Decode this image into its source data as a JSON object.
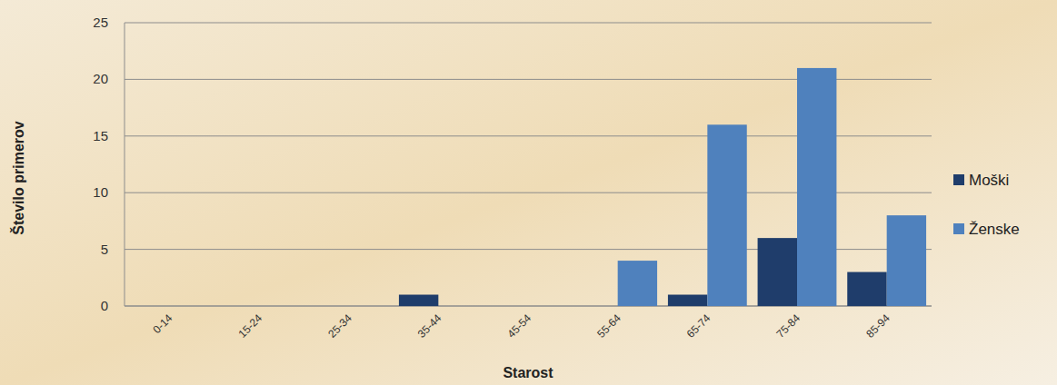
{
  "chart_data": {
    "type": "bar",
    "x_label": "Starost",
    "y_label": "Število primerov",
    "categories": [
      "0-14",
      "15-24",
      "25-34",
      "35-44",
      "45-54",
      "55-64",
      "65-74",
      "75-84",
      "85-94"
    ],
    "series": [
      {
        "name": "Moški",
        "color": "#1f3d6b",
        "values": [
          0,
          0,
          0,
          1,
          0,
          0,
          1,
          6,
          3
        ]
      },
      {
        "name": "Ženske",
        "color": "#4f81bd",
        "values": [
          0,
          0,
          0,
          0,
          0,
          4,
          16,
          21,
          8
        ]
      }
    ],
    "ylim": [
      0,
      25
    ],
    "yticks": [
      0,
      5,
      10,
      15,
      20,
      25
    ],
    "grid": true,
    "legend": "right"
  }
}
